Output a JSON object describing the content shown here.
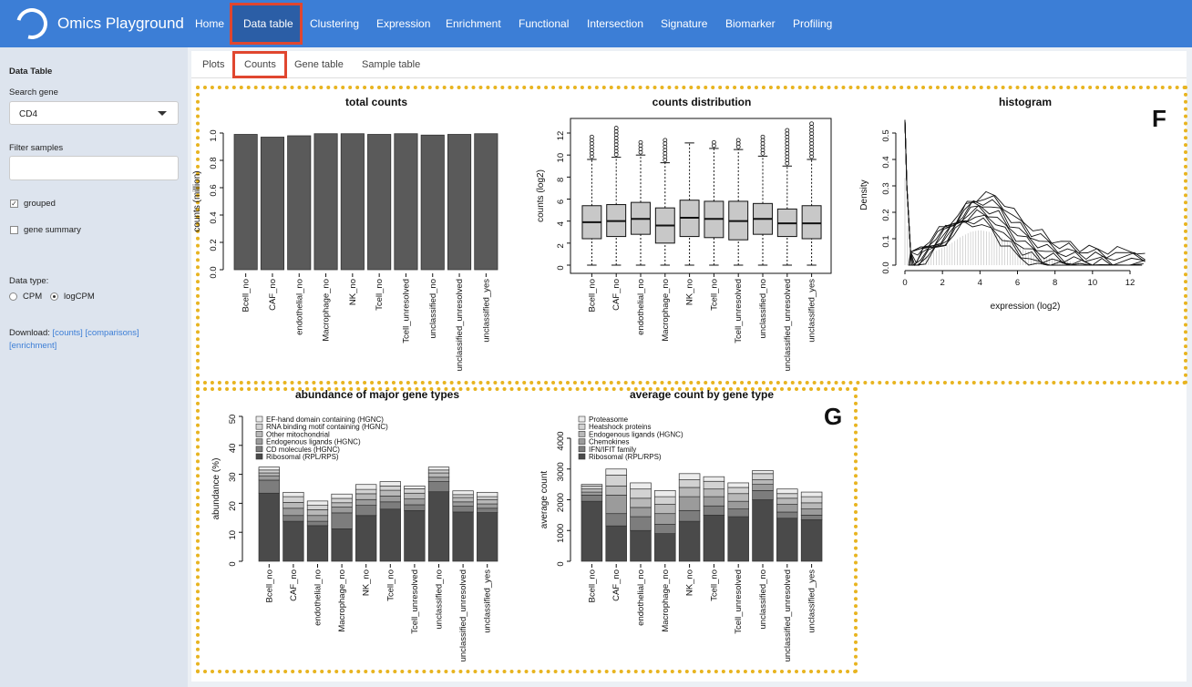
{
  "app": {
    "title": "Omics Playground"
  },
  "nav": {
    "items": [
      "Home",
      "Data table",
      "Clustering",
      "Expression",
      "Enrichment",
      "Functional",
      "Intersection",
      "Signature",
      "Biomarker",
      "Profiling"
    ],
    "active": "Data table"
  },
  "sidebar": {
    "heading": "Data Table",
    "search_gene_label": "Search gene",
    "search_gene_value": "CD4",
    "filter_samples_label": "Filter samples",
    "filter_samples_value": "",
    "grouped_label": "grouped",
    "grouped_checked": true,
    "gene_summary_label": "gene summary",
    "gene_summary_checked": false,
    "data_type_label": "Data type:",
    "cpm_label": "CPM",
    "logcpm_label": "logCPM",
    "data_type_selected": "logCPM",
    "download_label": "Download:",
    "download_counts": "[counts]",
    "download_comparisons": "[comparisons]",
    "download_enrichment": "[enrichment]"
  },
  "tabs": {
    "items": [
      "Plots",
      "Counts",
      "Gene table",
      "Sample table"
    ],
    "active": "Counts"
  },
  "panel_letters": {
    "f": "F",
    "g": "G"
  },
  "colors": {
    "nav_bg": "#3c7ed6",
    "highlight": "#e0462f",
    "panel_border": "#e8b420",
    "bar": "#5a5a5a"
  },
  "chart_data": [
    {
      "type": "bar",
      "title": "total counts",
      "ylabel": "counts (million)",
      "categories": [
        "Bcell_no",
        "CAF_no",
        "endothelial_no",
        "Macrophage_no",
        "NK_no",
        "Tcell_no",
        "Tcell_unresolved",
        "unclassified_no",
        "unclassified_unresolved",
        "unclassified_yes"
      ],
      "values": [
        0.99,
        0.97,
        0.98,
        0.995,
        0.995,
        0.99,
        0.995,
        0.985,
        0.99,
        0.995
      ],
      "ylim": [
        0,
        1.0
      ],
      "yticks": [
        "0.0",
        "0.2",
        "0.4",
        "0.6",
        "0.8",
        "1.0"
      ]
    },
    {
      "type": "box",
      "title": "counts distribution",
      "ylabel": "counts (log2)",
      "categories": [
        "Bcell_no",
        "CAF_no",
        "endothelial_no",
        "Macrophage_no",
        "NK_no",
        "Tcell_no",
        "Tcell_unresolved",
        "unclassified_no",
        "unclassified_unresolved",
        "unclassified_yes"
      ],
      "boxes": [
        {
          "min": 0,
          "q1": 2.4,
          "median": 3.9,
          "q3": 5.4,
          "max": 9.6,
          "outlier_max": 11.7
        },
        {
          "min": 0,
          "q1": 2.6,
          "median": 4.0,
          "q3": 5.5,
          "max": 9.8,
          "outlier_max": 12.5
        },
        {
          "min": 0,
          "q1": 2.8,
          "median": 4.2,
          "q3": 5.7,
          "max": 10.0,
          "outlier_max": 11.4
        },
        {
          "min": 0,
          "q1": 2.0,
          "median": 3.6,
          "q3": 5.2,
          "max": 9.3,
          "outlier_max": 11.4
        },
        {
          "min": 0,
          "q1": 2.6,
          "median": 4.3,
          "q3": 5.9,
          "max": 11.1,
          "outlier_max": 11.2
        },
        {
          "min": 0,
          "q1": 2.5,
          "median": 4.2,
          "q3": 5.8,
          "max": 10.6,
          "outlier_max": 11.4
        },
        {
          "min": 0,
          "q1": 2.3,
          "median": 4.0,
          "q3": 5.8,
          "max": 10.5,
          "outlier_max": 11.4
        },
        {
          "min": 0,
          "q1": 2.8,
          "median": 4.2,
          "q3": 5.6,
          "max": 9.9,
          "outlier_max": 11.8
        },
        {
          "min": 0,
          "q1": 2.6,
          "median": 3.8,
          "q3": 5.1,
          "max": 9.0,
          "outlier_max": 12.3
        },
        {
          "min": 0,
          "q1": 2.4,
          "median": 3.8,
          "q3": 5.4,
          "max": 9.6,
          "outlier_max": 13.0
        }
      ],
      "ylim": [
        0,
        13
      ],
      "yticks": [
        "0",
        "2",
        "4",
        "6",
        "8",
        "10",
        "12"
      ]
    },
    {
      "type": "line",
      "title": "histogram",
      "xlabel": "expression (log2)",
      "ylabel": "Density",
      "xlim": [
        0,
        13
      ],
      "ylim": [
        0,
        0.55
      ],
      "xticks": [
        "0",
        "2",
        "4",
        "6",
        "8",
        "10",
        "12"
      ],
      "yticks": [
        "0.0",
        "0.1",
        "0.2",
        "0.3",
        "0.4",
        "0.5"
      ],
      "x": [
        0,
        0.1,
        0.3,
        0.6,
        1.0,
        1.5,
        2.0,
        2.5,
        3.0,
        3.5,
        4.0,
        4.5,
        5.0,
        5.5,
        6.0,
        6.5,
        7.0,
        7.5,
        8.0,
        8.5,
        9.0,
        9.5,
        10.0,
        10.5,
        11.0,
        12.0,
        12.8
      ],
      "y": [
        0.55,
        0.3,
        0.05,
        0.02,
        0.05,
        0.08,
        0.11,
        0.14,
        0.18,
        0.21,
        0.22,
        0.21,
        0.19,
        0.15,
        0.12,
        0.09,
        0.07,
        0.05,
        0.04,
        0.03,
        0.02,
        0.015,
        0.01,
        0.008,
        0.005,
        0.003,
        0.002
      ]
    },
    {
      "type": "bar",
      "title": "abundance of major gene types",
      "ylabel": "abundance (%)",
      "categories": [
        "Bcell_no",
        "CAF_no",
        "endothelial_no",
        "Macrophage_no",
        "NK_no",
        "Tcell_no",
        "Tcell_unresolved",
        "unclassified_no",
        "unclassified_unresolved",
        "unclassified_yes"
      ],
      "series": [
        {
          "name": "Ribosomal (RPL/RPS)",
          "values": [
            23.5,
            13.8,
            12.3,
            11.2,
            15.8,
            18.0,
            17.5,
            24.0,
            17.0,
            16.8
          ]
        },
        {
          "name": "CD molecules (HGNC)",
          "values": [
            4.5,
            2.0,
            1.5,
            5.5,
            3.5,
            2.5,
            2.0,
            3.5,
            2.0,
            1.5
          ]
        },
        {
          "name": "Endogenous ligands (HGNC)",
          "values": [
            1.5,
            2.5,
            2.0,
            2.0,
            2.0,
            2.0,
            2.0,
            1.5,
            1.5,
            1.5
          ]
        },
        {
          "name": "Other mitochondrial",
          "values": [
            1.0,
            2.0,
            2.0,
            1.5,
            2.0,
            2.0,
            2.0,
            1.5,
            1.5,
            1.5
          ]
        },
        {
          "name": "RNA binding motif containing (HGNC)",
          "values": [
            1.0,
            2.0,
            1.5,
            1.5,
            1.5,
            1.5,
            1.5,
            1.0,
            1.0,
            1.0
          ]
        },
        {
          "name": "EF-hand domain containing (HGNC)",
          "values": [
            1.0,
            1.5,
            1.5,
            1.5,
            1.7,
            1.5,
            1.0,
            1.0,
            1.3,
            1.5
          ]
        }
      ],
      "ylim": [
        0,
        50
      ],
      "yticks": [
        "0",
        "10",
        "20",
        "30",
        "40",
        "50"
      ]
    },
    {
      "type": "bar",
      "title": "average count by gene type",
      "ylabel": "average count",
      "categories": [
        "Bcell_no",
        "CAF_no",
        "endothelial_no",
        "Macrophage_no",
        "NK_no",
        "Tcell_no",
        "Tcell_unresolved",
        "unclassified_no",
        "unclassified_unresolved",
        "unclassified_yes"
      ],
      "series": [
        {
          "name": "Ribosomal (RPL/RPS)",
          "values": [
            1950,
            1150,
            1000,
            900,
            1300,
            1500,
            1450,
            2000,
            1400,
            1350
          ]
        },
        {
          "name": "IFN/IFIT family",
          "values": [
            200,
            400,
            450,
            300,
            350,
            300,
            250,
            300,
            200,
            150
          ]
        },
        {
          "name": "Chemokines",
          "values": [
            100,
            600,
            300,
            350,
            450,
            300,
            250,
            200,
            250,
            200
          ]
        },
        {
          "name": "Endogenous ligands (HGNC)",
          "values": [
            100,
            300,
            300,
            300,
            300,
            250,
            250,
            150,
            200,
            200
          ]
        },
        {
          "name": "Heatshock proteins",
          "values": [
            100,
            350,
            300,
            250,
            250,
            250,
            200,
            200,
            150,
            200
          ]
        },
        {
          "name": "Proteasome",
          "values": [
            50,
            200,
            200,
            200,
            200,
            150,
            150,
            100,
            150,
            150
          ]
        }
      ],
      "ylim": [
        0,
        4000
      ],
      "yticks": [
        "0",
        "1000",
        "2000",
        "3000",
        "4000"
      ]
    }
  ]
}
